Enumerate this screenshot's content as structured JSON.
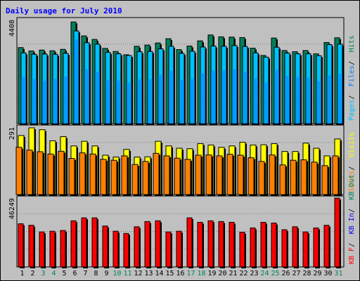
{
  "title": "Daily usage for July 2010",
  "colors": {
    "hits": "#00805c",
    "files": "#0080ff",
    "pages": "#00c0ff",
    "visits": "#ffff00",
    "sites": "#ff8000",
    "kbin": "#ff0000",
    "weekend_day": "#00805c",
    "weekday": "#000000",
    "panel_bg": "#c0c0c0",
    "frame_bg": "#c0c0c0"
  },
  "chart_data": [
    {
      "type": "bar",
      "ylim": [
        0,
        4408
      ],
      "ytick": "4408",
      "legend": [
        {
          "name": "Pages",
          "color": "#00c0ff"
        },
        {
          "name": "Files",
          "color": "#0080ff"
        },
        {
          "name": "Hits",
          "color": "#00805c"
        }
      ],
      "series": [
        {
          "name": "Hits",
          "values": [
            3225,
            3080,
            3120,
            3090,
            3150,
            4310,
            3720,
            3570,
            3190,
            3060,
            2920,
            3280,
            3330,
            3420,
            3600,
            3140,
            3290,
            3510,
            3760,
            3680,
            3670,
            3650,
            3200,
            2890,
            3630,
            3100,
            3050,
            3100,
            2960,
            3440,
            3640
          ]
        },
        {
          "name": "Files",
          "values": [
            1980,
            1890,
            1820,
            1900,
            1990,
            3570,
            2310,
            2190,
            1840,
            1830,
            1710,
            1880,
            1880,
            2060,
            2230,
            1850,
            1900,
            2140,
            2250,
            2260,
            2310,
            2210,
            1910,
            1750,
            2280,
            2020,
            1970,
            1940,
            1800,
            2050,
            2120
          ]
        },
        {
          "name": "Pages",
          "values": [
            3000,
            2940,
            2950,
            2940,
            2980,
            3930,
            3430,
            3370,
            3020,
            2960,
            2890,
            3050,
            3060,
            3170,
            3280,
            2980,
            3070,
            3250,
            3290,
            3280,
            3310,
            3270,
            3000,
            2820,
            3240,
            2990,
            2960,
            2960,
            2880,
            3350,
            3370
          ]
        }
      ]
    },
    {
      "type": "bar",
      "ylim": [
        0,
        291
      ],
      "ytick": "291",
      "legend": [
        {
          "name": "Sites",
          "color": "#ff8000"
        },
        {
          "name": "Visits",
          "color": "#ffff00"
        }
      ],
      "series": [
        {
          "name": "Visits",
          "values": [
            255,
            288,
            280,
            232,
            250,
            210,
            230,
            210,
            170,
            162,
            195,
            162,
            163,
            230,
            210,
            200,
            198,
            220,
            214,
            204,
            210,
            226,
            214,
            215,
            220,
            186,
            186,
            222,
            200,
            167,
            240
          ]
        },
        {
          "name": "Sites",
          "values": [
            204,
            192,
            185,
            175,
            187,
            156,
            180,
            175,
            152,
            148,
            167,
            130,
            143,
            178,
            167,
            157,
            152,
            170,
            171,
            167,
            174,
            170,
            159,
            143,
            171,
            128,
            148,
            150,
            140,
            125,
            167
          ]
        }
      ]
    },
    {
      "type": "bar",
      "ylim": [
        0,
        46249
      ],
      "ytick": "46249",
      "legend": [
        {
          "name": "KB F",
          "color": "#ff0000"
        },
        {
          "name": "KB In",
          "color": "#0000ff"
        },
        {
          "name": "KB Out",
          "color": "#00805c"
        }
      ],
      "series": [
        {
          "name": "KB F",
          "values": [
            29000,
            28000,
            23500,
            24000,
            24500,
            31000,
            33000,
            33000,
            27500,
            24000,
            22500,
            27000,
            30500,
            31000,
            23500,
            24000,
            33000,
            30000,
            31000,
            30500,
            30000,
            23300,
            26200,
            30000,
            29500,
            25000,
            27000,
            23500,
            26200,
            28000,
            46249
          ]
        }
      ]
    }
  ],
  "days": [
    "1",
    "2",
    "3",
    "4",
    "5",
    "6",
    "7",
    "8",
    "9",
    "10",
    "11",
    "12",
    "13",
    "14",
    "15",
    "16",
    "17",
    "18",
    "19",
    "20",
    "21",
    "22",
    "23",
    "24",
    "25",
    "26",
    "27",
    "28",
    "29",
    "30",
    "31"
  ],
  "weekend_days": [
    "3",
    "4",
    "10",
    "11",
    "17",
    "18",
    "24",
    "25",
    "31"
  ]
}
